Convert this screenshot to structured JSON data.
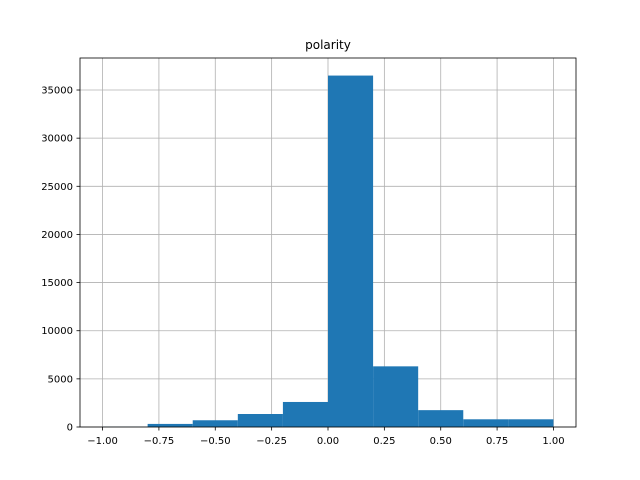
{
  "chart_data": {
    "type": "bar",
    "title": "polarity",
    "xlabel": "",
    "ylabel": "",
    "grid": true,
    "bins": [
      {
        "start": -1.0,
        "end": -0.8,
        "value": 20
      },
      {
        "start": -0.8,
        "end": -0.6,
        "value": 320
      },
      {
        "start": -0.6,
        "end": -0.4,
        "value": 700
      },
      {
        "start": -0.4,
        "end": -0.2,
        "value": 1350
      },
      {
        "start": -0.2,
        "end": 0.0,
        "value": 2600
      },
      {
        "start": 0.0,
        "end": 0.2,
        "value": 36500
      },
      {
        "start": 0.2,
        "end": 0.4,
        "value": 6300
      },
      {
        "start": 0.4,
        "end": 0.6,
        "value": 1750
      },
      {
        "start": 0.6,
        "end": 0.8,
        "value": 800
      },
      {
        "start": 0.8,
        "end": 1.0,
        "value": 800
      }
    ],
    "xlim": [
      -1.1,
      1.1
    ],
    "ylim": [
      0,
      38325
    ],
    "xticks": [
      -1.0,
      -0.75,
      -0.5,
      -0.25,
      0.0,
      0.25,
      0.5,
      0.75,
      1.0
    ],
    "xtick_labels": [
      "−1.00",
      "−0.75",
      "−0.50",
      "−0.25",
      "0.00",
      "0.25",
      "0.50",
      "0.75",
      "1.00"
    ],
    "yticks": [
      0,
      5000,
      10000,
      15000,
      20000,
      25000,
      30000,
      35000
    ],
    "ytick_labels": [
      "0",
      "5000",
      "10000",
      "15000",
      "20000",
      "25000",
      "30000",
      "35000"
    ],
    "colors": {
      "bar": "#1f77b4",
      "grid": "#b0b0b0",
      "axis": "#000000"
    }
  }
}
